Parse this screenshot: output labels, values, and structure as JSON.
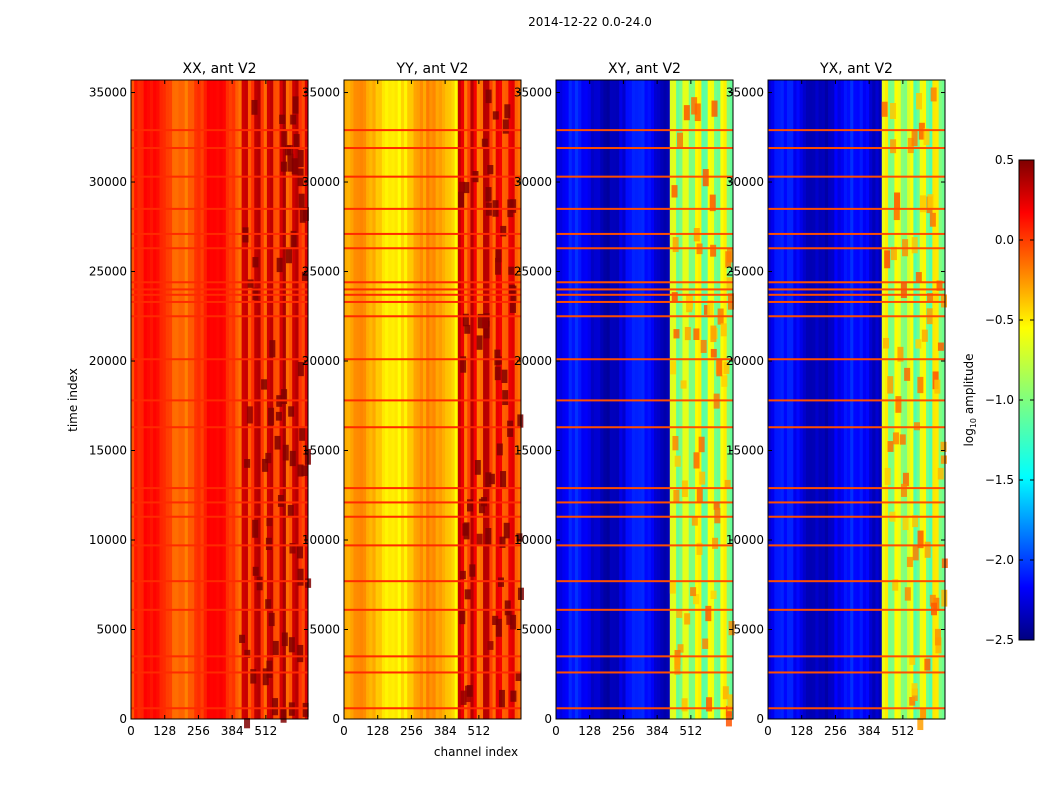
{
  "suptitle": "2014-12-22 0.0-24.0",
  "chart_data": {
    "type": "heatmap",
    "xlabel": "channel index",
    "ylabel": "time index",
    "x_ticks": [
      0,
      128,
      256,
      384,
      512
    ],
    "xlim": [
      0,
      672
    ],
    "y_ticks": [
      0,
      5000,
      10000,
      15000,
      20000,
      25000,
      30000,
      35000
    ],
    "ylim": [
      0,
      35700
    ],
    "panels": [
      {
        "title": "XX, ant V2",
        "base_level": -0.05,
        "band_level": 0.15,
        "band_channels": [
          410,
          672
        ],
        "stripe_level": 0.0
      },
      {
        "title": "YY, ant V2",
        "base_level": -0.45,
        "band_level": 0.1,
        "band_channels": [
          430,
          672
        ],
        "stripe_level": 0.0
      },
      {
        "title": "XY, ant V2",
        "base_level": -2.2,
        "band_level": -0.8,
        "band_channels": [
          430,
          672
        ],
        "stripe_level": -0.1
      },
      {
        "title": "YX, ant V2",
        "base_level": -2.2,
        "band_level": -0.8,
        "band_channels": [
          430,
          672
        ],
        "stripe_level": -0.1
      }
    ],
    "colorbar": {
      "label_prefix": "log",
      "label_sub": "10",
      "label_suffix": " amplitude",
      "range": [
        -2.5,
        0.5
      ],
      "ticks": [
        -2.5,
        -2.0,
        -1.5,
        -1.0,
        -0.5,
        0.0,
        0.5
      ],
      "tick_labels": [
        "−2.5",
        "−2.0",
        "−1.5",
        "−1.0",
        "−0.5",
        "0.0",
        "0.5"
      ],
      "colormap": "jet"
    },
    "rfi_time_rows": [
      600,
      2600,
      3500,
      6100,
      7700,
      9700,
      11300,
      12100,
      12900,
      16300,
      17800,
      20100,
      22500,
      23300,
      23700,
      24000,
      24400,
      26300,
      27100,
      28500,
      30300,
      31900,
      32900
    ]
  }
}
